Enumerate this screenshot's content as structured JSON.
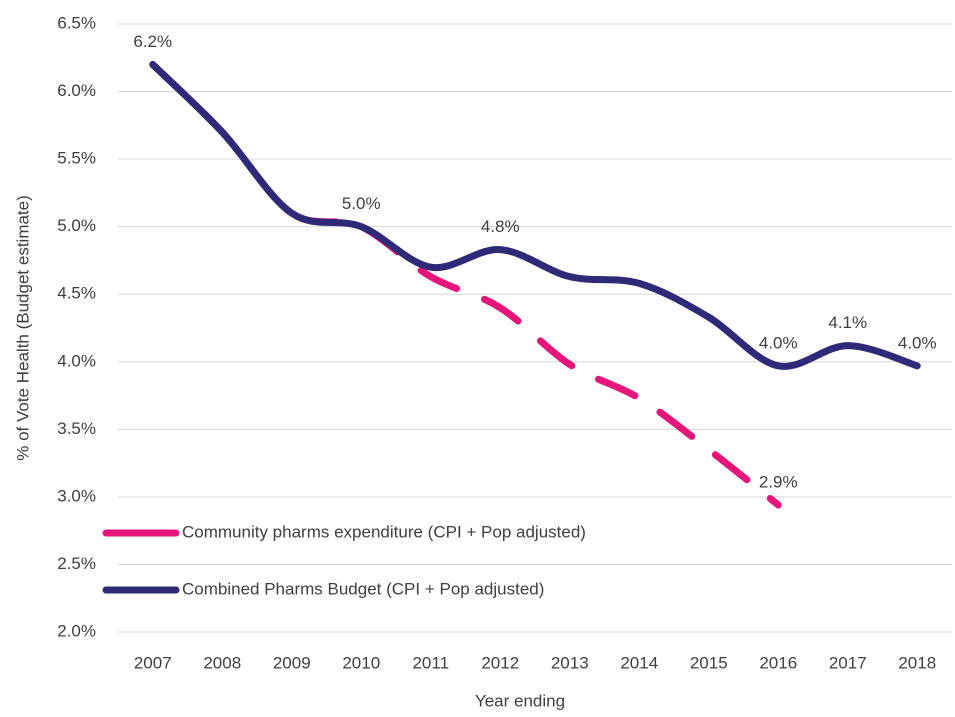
{
  "chart_data": {
    "type": "line",
    "x_label": "Year ending",
    "y_label": "% of Vote Health (Budget estimate)",
    "categories": [
      "2007",
      "2008",
      "2009",
      "2010",
      "2011",
      "2012",
      "2013",
      "2014",
      "2015",
      "2016",
      "2017",
      "2018"
    ],
    "series": [
      {
        "name": "Community pharms expenditure (CPI + Pop adjusted)",
        "color": "#e5157a",
        "dashed": true,
        "values": [
          6.2,
          5.7,
          5.1,
          5.0,
          4.63,
          4.4,
          3.98,
          3.73,
          3.35,
          2.94,
          null,
          null
        ],
        "value_labels": [
          null,
          null,
          null,
          null,
          null,
          null,
          null,
          null,
          null,
          "2.9%",
          null,
          null
        ]
      },
      {
        "name": "Combined Pharms Budget (CPI + Pop adjusted)",
        "color": "#2e2a78",
        "dashed": false,
        "values": [
          6.2,
          5.7,
          5.1,
          5.0,
          4.7,
          4.83,
          4.63,
          4.58,
          4.33,
          3.97,
          4.12,
          3.97
        ],
        "value_labels": [
          "6.2%",
          null,
          null,
          "5.0%",
          null,
          "4.8%",
          null,
          null,
          null,
          "4.0%",
          "4.1%",
          "4.0%"
        ]
      }
    ],
    "ylim": [
      2.0,
      6.5
    ],
    "yticks": [
      {
        "value": 2.0,
        "label": "2.0%"
      },
      {
        "value": 2.5,
        "label": "2.5%"
      },
      {
        "value": 3.0,
        "label": "3.0%"
      },
      {
        "value": 3.5,
        "label": "3.5%"
      },
      {
        "value": 4.0,
        "label": "4.0%"
      },
      {
        "value": 4.5,
        "label": "4.5%"
      },
      {
        "value": 5.0,
        "label": "5.0%"
      },
      {
        "value": 5.5,
        "label": "5.5%"
      },
      {
        "value": 6.0,
        "label": "6.0%"
      },
      {
        "value": 6.5,
        "label": "6.5%"
      }
    ],
    "grid": true,
    "legend": "lower left"
  }
}
